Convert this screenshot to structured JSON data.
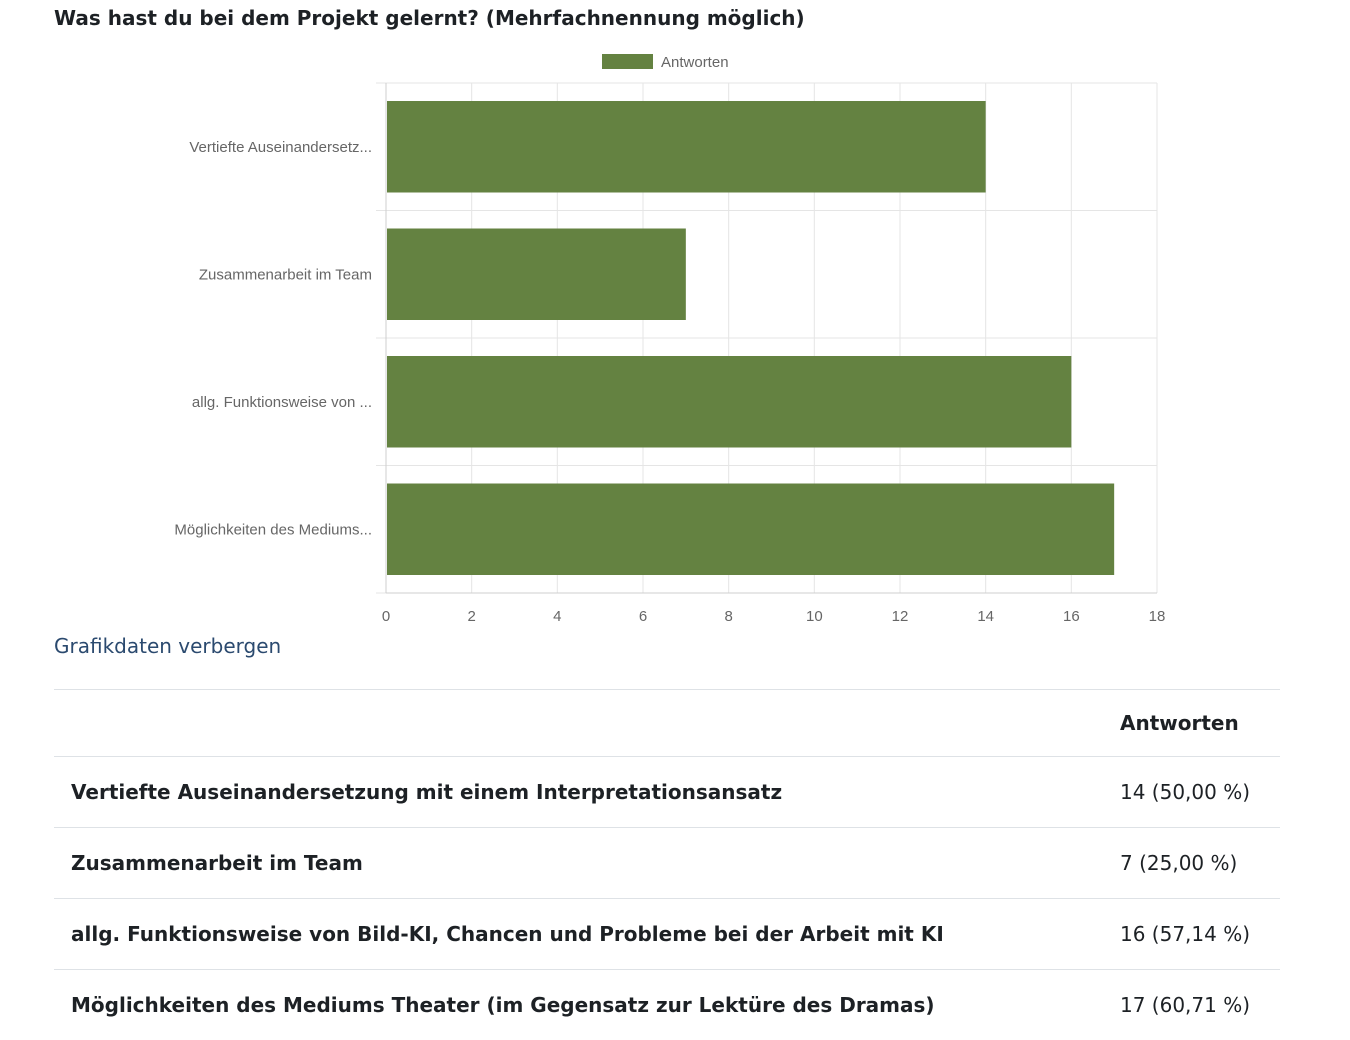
{
  "question": {
    "title": "Was hast du bei dem Projekt gelernt? (Mehrfachnennung möglich)"
  },
  "chart_data": {
    "type": "bar",
    "orientation": "horizontal",
    "legend_position": "top",
    "categories": [
      "Vertiefte Auseinandersetz...",
      "Zusammenarbeit im Team",
      "allg. Funktionsweise von ...",
      "Möglichkeiten des Mediums..."
    ],
    "series": [
      {
        "name": "Antworten",
        "values": [
          14,
          7,
          16,
          17
        ],
        "color": "#648241"
      }
    ],
    "xlim": [
      0,
      18
    ],
    "xticks": [
      "0",
      "2",
      "4",
      "6",
      "8",
      "10",
      "12",
      "14",
      "16",
      "18"
    ],
    "grid": true
  },
  "toggle_link": "Grafikdaten verbergen",
  "table": {
    "header": {
      "label": "",
      "value": "Antworten"
    },
    "rows": [
      {
        "label": "Vertiefte Auseinandersetzung mit einem Interpretationsansatz",
        "value": "14 (50,00 %)"
      },
      {
        "label": "Zusammenarbeit im Team",
        "value": "7 (25,00 %)"
      },
      {
        "label": "allg. Funktionsweise von Bild-KI, Chancen und Probleme bei der Arbeit mit KI",
        "value": "16 (57,14 %)"
      },
      {
        "label": "Möglichkeiten des Mediums Theater (im Gegensatz zur Lektüre des Dramas)",
        "value": "17 (60,71 %)"
      }
    ]
  }
}
